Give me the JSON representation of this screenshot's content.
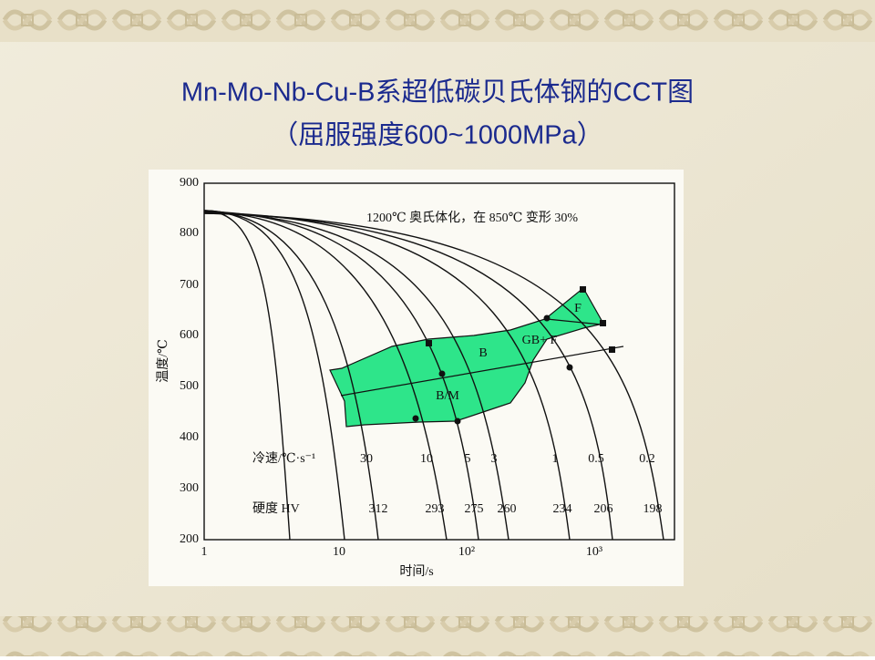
{
  "slide": {
    "title": [
      "Mn-Mo-Nb-Cu-B系超低碳贝氏体钢的CCT图",
      "（屈服强度600~1000MPa）"
    ]
  },
  "figure": {
    "y_axis_label": "温度/℃",
    "x_axis_label": "时间/s",
    "y_tick_labels": [
      "900",
      "800",
      "700",
      "600",
      "500",
      "400",
      "300",
      "200"
    ],
    "x_tick_labels": [
      "1",
      "10",
      "10²",
      "10³"
    ],
    "annotation": "1200℃ 奥氏体化，在 850℃ 变形 30%",
    "region_labels": [
      "F",
      "GB+ F",
      "B",
      "B/M"
    ],
    "cooling_rate_label": "冷速/℃·s⁻¹",
    "cooling_rates": [
      "30",
      "10",
      "5",
      "3",
      "1",
      "0.5",
      "0.2"
    ],
    "hardness_label": "硬度 HV",
    "hardness": [
      "312",
      "293",
      "275",
      "260",
      "234",
      "206",
      "198"
    ]
  }
}
